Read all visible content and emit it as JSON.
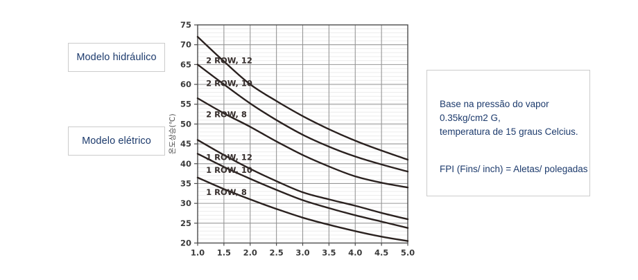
{
  "page": {
    "background": "#ffffff"
  },
  "model_labels": {
    "hydraulic": "Modelo hidráulico",
    "electric": "Modelo elétrico"
  },
  "info_box": {
    "lines": [
      "Base na pressão do vapor",
      "0.35kg/cm2 G,",
      "temperatura de 15 graus Celcius."
    ],
    "fpi_note": "FPI (Fins/ inch) = Aletas/ polegadas"
  },
  "colors": {
    "text_navy": "#1c3a6c",
    "box_border": "#cbcbcb",
    "curve": "#2a211f",
    "curve_label": "#362e2c",
    "grid_major": "#969696",
    "grid_light": "#c7c7c7",
    "grid_minor": "#ececec",
    "plot_border": "#4b4b4b",
    "tick_text": "#3c3c3c"
  },
  "chart_data": {
    "type": "line",
    "title": "",
    "xlabel": "",
    "ylabel": "온도상승(℃)",
    "xlim": [
      1.0,
      5.0
    ],
    "ylim": [
      20,
      75
    ],
    "x_major_step": 0.5,
    "y_major_step": 5,
    "y_minor_step": 1,
    "grid": "on",
    "legend_position": "inline-labels",
    "light_gridlines_y": [
      45,
      50,
      55,
      60
    ],
    "x": [
      1.0,
      1.5,
      2.0,
      2.5,
      3.0,
      3.5,
      4.0,
      4.5,
      5.0
    ],
    "series": [
      {
        "name": "2 ROW, 12",
        "values": [
          72.0,
          65.8,
          60.0,
          55.8,
          52.0,
          48.7,
          45.8,
          43.3,
          41.0
        ],
        "label_x": 1.16,
        "label_y": 66.0
      },
      {
        "name": "2 ROW, 10",
        "values": [
          65.0,
          60.0,
          55.2,
          51.0,
          47.3,
          44.3,
          41.8,
          39.8,
          38.0
        ],
        "label_x": 1.16,
        "label_y": 60.3
      },
      {
        "name": "2 ROW, 8",
        "values": [
          56.5,
          52.7,
          49.3,
          45.6,
          42.2,
          39.3,
          36.8,
          35.2,
          34.0
        ],
        "label_x": 1.16,
        "label_y": 52.4
      },
      {
        "name": "1 ROW, 12",
        "values": [
          46.0,
          42.2,
          38.7,
          35.6,
          32.8,
          31.0,
          29.4,
          27.6,
          26.0
        ],
        "label_x": 1.16,
        "label_y": 41.6
      },
      {
        "name": "1 ROW, 10",
        "values": [
          42.5,
          39.2,
          36.2,
          33.4,
          30.8,
          28.8,
          27.0,
          25.4,
          23.8
        ],
        "label_x": 1.16,
        "label_y": 38.4
      },
      {
        "name": "1 ROW, 8",
        "values": [
          36.5,
          33.6,
          31.0,
          28.6,
          26.4,
          24.6,
          23.0,
          21.6,
          20.5
        ],
        "label_x": 1.16,
        "label_y": 32.8
      }
    ]
  }
}
